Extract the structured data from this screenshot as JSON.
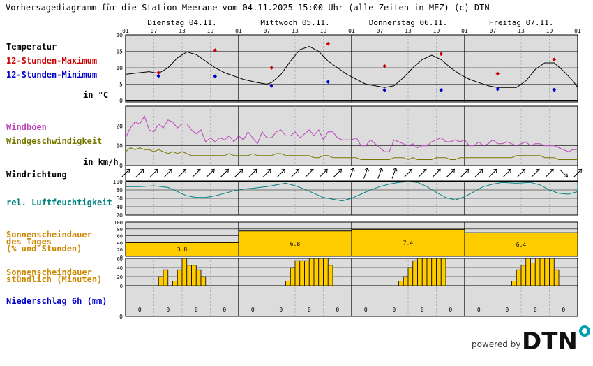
{
  "title": "Vorhersagediagramm für die Station Meerane vom 04.11.2025 15:00 Uhr (alle Zeiten in MEZ)   (c) DTN",
  "days": [
    "Dienstag 04.11.",
    "Mittwoch 05.11.",
    "Donnerstag 06.11.",
    "Freitag 07.11."
  ],
  "hour_labels": [
    "01",
    "07",
    "13",
    "19"
  ],
  "hour_label_end": "01",
  "labels": {
    "temp": "Temperatur",
    "tmax": "12-Stunden-Maximum",
    "tmin": "12-Stunden-Minimum",
    "temp_unit": "in °C",
    "gust": "Windböen",
    "wind": "Windgeschwindigkeit",
    "wind_unit": "in km/h",
    "dir": "Windrichtung",
    "hum": "rel. Luftfeuchtigkeit",
    "sun_day_1": "Sonnenscheindauer",
    "sun_day_2": "des Tages",
    "sun_day_3": "(% und Stunden)",
    "sun_hour_1": "Sonnenscheindauer",
    "sun_hour_2": "stündlich (Minuten)",
    "precip": "Niederschlag 6h (mm)"
  },
  "brand": {
    "powered": "powered by",
    "logo": "DTN"
  },
  "colors": {
    "tmax": "#cc0000",
    "tmin": "#0000cc",
    "gust": "#bb44bb",
    "wind": "#777700",
    "hum": "#008080",
    "sun": "#ffcc00",
    "sun_label": "#cc8800",
    "precip": "#0000cc",
    "bg": "#dcdcdc"
  },
  "chart_data": {
    "type": "line",
    "x": "hours since 04.11. 01:00, step 1 h (96 h)",
    "temperature": {
      "ylim": [
        0,
        20
      ],
      "ticks": [
        0,
        5,
        10,
        15,
        20
      ],
      "series": [
        [
          0,
          8
        ],
        [
          3,
          8.5
        ],
        [
          5,
          8.8
        ],
        [
          7,
          8.3
        ],
        [
          9,
          10
        ],
        [
          11,
          13
        ],
        [
          13,
          14.8
        ],
        [
          15,
          14
        ],
        [
          17,
          12
        ],
        [
          19,
          10
        ],
        [
          21,
          8.5
        ],
        [
          23,
          7.5
        ],
        [
          25,
          6.5
        ],
        [
          28,
          5.5
        ],
        [
          30,
          5.0
        ],
        [
          31,
          5.5
        ],
        [
          33,
          8
        ],
        [
          35,
          12
        ],
        [
          37,
          15.5
        ],
        [
          39,
          16.5
        ],
        [
          41,
          15
        ],
        [
          43,
          12
        ],
        [
          45,
          10
        ],
        [
          47,
          8
        ],
        [
          49,
          6.5
        ],
        [
          51,
          5
        ],
        [
          53,
          4.5
        ],
        [
          55,
          4
        ],
        [
          57,
          4.5
        ],
        [
          59,
          7
        ],
        [
          61,
          10
        ],
        [
          63,
          12.5
        ],
        [
          65,
          13.8
        ],
        [
          67,
          12.5
        ],
        [
          69,
          10
        ],
        [
          71,
          8
        ],
        [
          73,
          6.5
        ],
        [
          75,
          5.5
        ],
        [
          77,
          4.5
        ],
        [
          79,
          4
        ],
        [
          81,
          4
        ],
        [
          83,
          4
        ],
        [
          85,
          6
        ],
        [
          87,
          9.5
        ],
        [
          89,
          11.5
        ],
        [
          91,
          11.5
        ],
        [
          93,
          9
        ],
        [
          95,
          6
        ],
        [
          96,
          4
        ]
      ],
      "max_points": [
        [
          7,
          8.5
        ],
        [
          19,
          15.3
        ],
        [
          31,
          10
        ],
        [
          43,
          17.3
        ],
        [
          55,
          10.5
        ],
        [
          67,
          14.2
        ],
        [
          79,
          8.2
        ],
        [
          91,
          12.5
        ]
      ],
      "min_points": [
        [
          7,
          7.5
        ],
        [
          19,
          7.4
        ],
        [
          31,
          4.5
        ],
        [
          43,
          5.7
        ],
        [
          55,
          3.2
        ],
        [
          67,
          3.2
        ],
        [
          79,
          3.5
        ],
        [
          91,
          3.3
        ]
      ]
    },
    "wind": {
      "ylim": [
        0,
        30
      ],
      "ticks": [
        0,
        10,
        20
      ],
      "gusts": [
        14,
        19,
        22,
        21,
        25,
        18,
        17,
        21,
        19,
        23,
        22,
        19,
        21,
        21,
        18,
        16,
        18,
        12,
        14,
        12,
        14,
        13,
        15,
        12,
        15,
        13,
        17,
        14,
        11,
        17,
        14,
        14,
        17,
        18,
        15,
        15,
        17,
        14,
        16,
        18,
        15,
        18,
        13,
        17,
        17,
        14,
        13,
        13,
        13,
        14,
        10,
        10,
        13,
        11,
        9,
        7,
        7,
        13,
        12,
        11,
        10,
        11,
        9,
        10,
        10,
        12,
        13,
        14,
        12,
        12,
        13,
        12,
        13,
        10,
        10,
        12,
        10,
        11,
        13,
        11,
        11,
        12,
        11,
        10,
        11,
        12,
        10,
        11,
        11,
        10,
        10,
        10,
        9,
        8,
        7,
        8,
        8
      ],
      "speed": [
        7,
        9,
        8,
        9,
        8,
        8,
        7,
        8,
        7,
        6,
        7,
        6,
        7,
        6,
        5,
        5,
        5,
        5,
        5,
        5,
        5,
        5,
        6,
        5,
        5,
        5,
        5,
        6,
        5,
        5,
        5,
        5,
        6,
        6,
        5,
        5,
        5,
        5,
        5,
        5,
        4,
        4,
        5,
        5,
        4,
        4,
        4,
        4,
        4,
        4,
        3,
        3,
        3,
        3,
        3,
        3,
        3,
        4,
        4,
        4,
        3,
        4,
        3,
        3,
        3,
        3,
        4,
        4,
        4,
        3,
        3,
        4,
        4,
        4,
        4,
        4,
        4,
        4,
        4,
        4,
        4,
        4,
        4,
        5,
        5,
        5,
        5,
        5,
        5,
        4,
        4,
        4,
        3,
        3,
        3,
        3,
        3
      ]
    },
    "wind_direction_deg": [
      225,
      225,
      225,
      225,
      225,
      225,
      225,
      225,
      225,
      225,
      225,
      225,
      225,
      225,
      225,
      225,
      200,
      200,
      200,
      200,
      225,
      225,
      225,
      225,
      225,
      225,
      225,
      225,
      225,
      225,
      225,
      315,
      225
    ],
    "humidity": {
      "ylim": [
        20,
        100
      ],
      "ticks": [
        20,
        40,
        60,
        80,
        100
      ],
      "series": [
        [
          0,
          88
        ],
        [
          3,
          88
        ],
        [
          6,
          90
        ],
        [
          9,
          86
        ],
        [
          11,
          76
        ],
        [
          13,
          66
        ],
        [
          15,
          62
        ],
        [
          17,
          62
        ],
        [
          19,
          66
        ],
        [
          21,
          72
        ],
        [
          23,
          78
        ],
        [
          25,
          82
        ],
        [
          27,
          84
        ],
        [
          30,
          88
        ],
        [
          32,
          92
        ],
        [
          34,
          96
        ],
        [
          36,
          90
        ],
        [
          38,
          82
        ],
        [
          40,
          72
        ],
        [
          42,
          62
        ],
        [
          44,
          58
        ],
        [
          46,
          54
        ],
        [
          48,
          60
        ],
        [
          50,
          70
        ],
        [
          52,
          80
        ],
        [
          54,
          88
        ],
        [
          56,
          94
        ],
        [
          58,
          98
        ],
        [
          60,
          100
        ],
        [
          62,
          98
        ],
        [
          64,
          88
        ],
        [
          66,
          74
        ],
        [
          68,
          62
        ],
        [
          70,
          56
        ],
        [
          72,
          64
        ],
        [
          74,
          76
        ],
        [
          76,
          88
        ],
        [
          78,
          94
        ],
        [
          80,
          98
        ],
        [
          83,
          96
        ],
        [
          86,
          98
        ],
        [
          88,
          92
        ],
        [
          90,
          80
        ],
        [
          92,
          72
        ],
        [
          94,
          70
        ],
        [
          96,
          76
        ],
        [
          98,
          88
        ],
        [
          100,
          94
        ],
        [
          104,
          98
        ],
        [
          108,
          98
        ]
      ]
    },
    "sunshine_daily": {
      "ylim": [
        0,
        100
      ],
      "ticks": [
        0,
        20,
        40,
        60,
        80,
        100
      ],
      "percent": [
        40,
        74,
        79,
        69
      ],
      "hours": [
        "3.8",
        "6.8",
        "7.4",
        "6.4"
      ]
    },
    "sunshine_hourly": {
      "ylim": [
        0,
        60
      ],
      "ticks": [
        0,
        20,
        40,
        60
      ],
      "minutes": [
        [
          7,
          20
        ],
        [
          8,
          35
        ],
        [
          10,
          10
        ],
        [
          11,
          35
        ],
        [
          12,
          60
        ],
        [
          13,
          45
        ],
        [
          14,
          45
        ],
        [
          15,
          35
        ],
        [
          16,
          20
        ],
        [
          34,
          10
        ],
        [
          35,
          40
        ],
        [
          36,
          55
        ],
        [
          37,
          55
        ],
        [
          38,
          55
        ],
        [
          39,
          60
        ],
        [
          40,
          60
        ],
        [
          41,
          60
        ],
        [
          42,
          60
        ],
        [
          43,
          45
        ],
        [
          58,
          10
        ],
        [
          59,
          20
        ],
        [
          60,
          40
        ],
        [
          61,
          55
        ],
        [
          62,
          60
        ],
        [
          63,
          60
        ],
        [
          64,
          60
        ],
        [
          65,
          60
        ],
        [
          66,
          60
        ],
        [
          67,
          60
        ],
        [
          82,
          10
        ],
        [
          83,
          35
        ],
        [
          84,
          45
        ],
        [
          85,
          60
        ],
        [
          86,
          50
        ],
        [
          87,
          60
        ],
        [
          88,
          60
        ],
        [
          89,
          60
        ],
        [
          90,
          60
        ],
        [
          91,
          35
        ]
      ]
    },
    "precipitation": {
      "ylim": [
        0,
        10
      ],
      "values": [
        "0",
        "0",
        "0",
        "0",
        "0",
        "0",
        "0",
        "0",
        "0",
        "0",
        "0",
        "0",
        "0",
        "0",
        "0",
        "0"
      ]
    }
  }
}
